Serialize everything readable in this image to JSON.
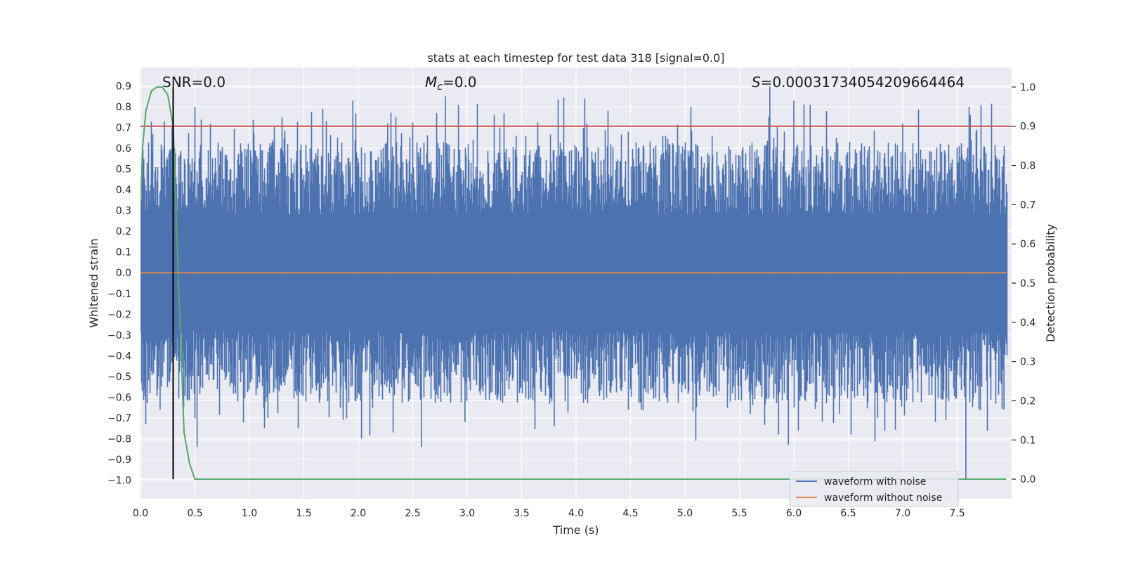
{
  "chart_data": {
    "type": "line",
    "title": "stats at each timestep for test data 318 [signal=0.0]",
    "xlabel": "Time (s)",
    "ylabel": "Whitened strain",
    "y2label": "Detection probability",
    "xlim": [
      0.0,
      8.0
    ],
    "ylim": [
      -1.09,
      0.99
    ],
    "y2lim": [
      -0.05,
      1.05
    ],
    "xticks": [
      "0.0",
      "0.5",
      "1.0",
      "1.5",
      "2.0",
      "2.5",
      "3.0",
      "3.5",
      "4.0",
      "4.5",
      "5.0",
      "5.5",
      "6.0",
      "6.5",
      "7.0",
      "7.5"
    ],
    "yticks": [
      "0.9",
      "0.8",
      "0.7",
      "0.6",
      "0.5",
      "0.4",
      "0.3",
      "0.2",
      "0.1",
      "0.0",
      "-0.1",
      "-0.2",
      "-0.3",
      "-0.4",
      "-0.5",
      "-0.6",
      "-0.7",
      "-0.8",
      "-0.9",
      "-1.0"
    ],
    "y2ticks": [
      "1.0",
      "0.9",
      "0.8",
      "0.7",
      "0.6",
      "0.5",
      "0.4",
      "0.3",
      "0.2",
      "0.1",
      "0.0"
    ],
    "grid": true,
    "legend_position": "bottom-right",
    "annotations": {
      "snr": "SNR=0.0",
      "mc_symbol": "M",
      "mc_sub": "c",
      "mc_value": "=0.0",
      "s_symbol": "S",
      "s_value": "=0.00031734054209664464"
    },
    "series": [
      {
        "name": "waveform with noise",
        "color": "#4c72b0",
        "description": "dense whitened-strain noise band, mostly within ±0.45, peaks near 0.9 and -1.0",
        "band_amplitude": 0.45,
        "peaks": [
          {
            "x": 0.03,
            "y": 0.55
          },
          {
            "x": 0.22,
            "y": 0.73
          },
          {
            "x": 0.29,
            "y": 0.71
          },
          {
            "x": 0.5,
            "y": 0.8
          },
          {
            "x": 0.52,
            "y": -0.84
          },
          {
            "x": 0.18,
            "y": -0.66
          },
          {
            "x": 1.3,
            "y": 0.75
          },
          {
            "x": 1.17,
            "y": -0.7
          },
          {
            "x": 1.95,
            "y": 0.83
          },
          {
            "x": 1.86,
            "y": -0.66
          },
          {
            "x": 2.03,
            "y": -0.8
          },
          {
            "x": 2.27,
            "y": 0.72
          },
          {
            "x": 2.32,
            "y": -0.77
          },
          {
            "x": 2.58,
            "y": -0.84
          },
          {
            "x": 2.72,
            "y": 0.77
          },
          {
            "x": 2.8,
            "y": 0.85
          },
          {
            "x": 2.92,
            "y": 0.81
          },
          {
            "x": 2.98,
            "y": -0.72
          },
          {
            "x": 3.3,
            "y": 0.7
          },
          {
            "x": 3.45,
            "y": 0.66
          },
          {
            "x": 3.62,
            "y": -0.63
          },
          {
            "x": 3.8,
            "y": -0.74
          },
          {
            "x": 4.08,
            "y": 0.84
          },
          {
            "x": 4.1,
            "y": 0.72
          },
          {
            "x": 4.48,
            "y": 0.68
          },
          {
            "x": 4.6,
            "y": -0.66
          },
          {
            "x": 5.1,
            "y": -0.81
          },
          {
            "x": 5.25,
            "y": 0.66
          },
          {
            "x": 5.6,
            "y": -0.68
          },
          {
            "x": 5.78,
            "y": 0.9
          },
          {
            "x": 5.86,
            "y": -0.78
          },
          {
            "x": 5.95,
            "y": -0.83
          },
          {
            "x": 6.0,
            "y": 0.83
          },
          {
            "x": 6.15,
            "y": 0.81
          },
          {
            "x": 6.3,
            "y": 0.78
          },
          {
            "x": 6.42,
            "y": -0.68
          },
          {
            "x": 6.77,
            "y": -0.7
          },
          {
            "x": 7.0,
            "y": 0.72
          },
          {
            "x": 7.3,
            "y": -0.72
          },
          {
            "x": 7.58,
            "y": -1.0
          },
          {
            "x": 7.62,
            "y": 0.76
          },
          {
            "x": 7.68,
            "y": 0.69
          },
          {
            "x": 7.93,
            "y": -0.66
          }
        ]
      },
      {
        "name": "waveform without noise",
        "color": "#dd8452",
        "x": [
          0.0,
          7.95
        ],
        "y": [
          0.0,
          0.0
        ]
      },
      {
        "name": "detection probability",
        "color": "#55a868",
        "axis": "right",
        "x": [
          0.0,
          0.02,
          0.05,
          0.1,
          0.15,
          0.2,
          0.25,
          0.3,
          0.35,
          0.4,
          0.45,
          0.5,
          7.95
        ],
        "y": [
          0.7,
          0.85,
          0.94,
          0.99,
          1.0,
          1.0,
          0.98,
          0.9,
          0.5,
          0.12,
          0.04,
          0.0,
          0.0
        ]
      }
    ],
    "threshold_line": {
      "y": 0.9,
      "axis": "right",
      "color": "#c44e52"
    },
    "marker_line": {
      "x": 0.3,
      "color": "#000000"
    }
  }
}
